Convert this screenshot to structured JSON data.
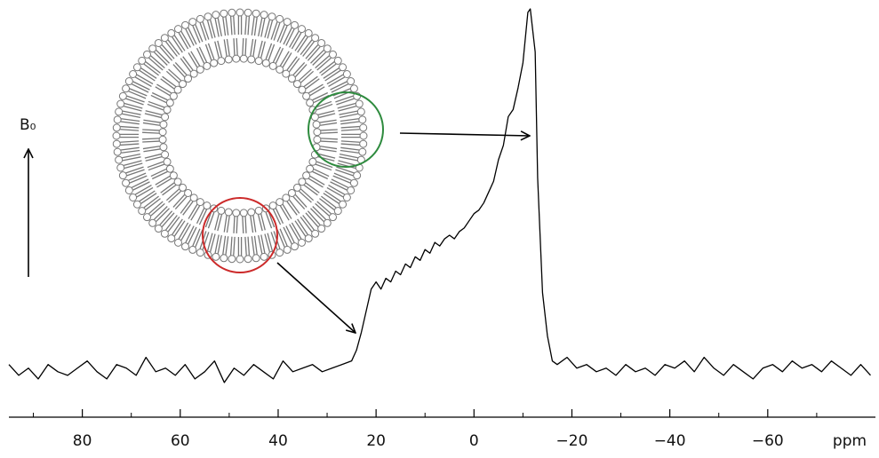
{
  "chart_data": {
    "type": "line",
    "annotation": "B₀",
    "x_label": "ppm",
    "reverse_x": true,
    "xlim": [
      95,
      -82
    ],
    "ylim": [
      -5,
      100
    ],
    "xticks": [
      80,
      60,
      40,
      20,
      0,
      {
        "value": -20,
        "label": "−20"
      },
      {
        "value": -40,
        "label": "−40"
      },
      {
        "value": -60,
        "label": "−60"
      }
    ],
    "minor_xticks": [
      90,
      70,
      50,
      30,
      10,
      -10,
      -30,
      -50,
      -70
    ],
    "x": [
      95,
      93,
      91,
      89,
      87,
      85,
      83,
      81,
      79,
      77,
      75,
      73,
      71,
      69,
      67,
      65,
      63,
      61,
      59,
      57,
      55,
      53,
      51,
      49,
      47,
      45,
      43,
      41,
      39,
      37,
      35,
      33,
      31,
      29,
      27,
      25,
      24,
      23,
      22,
      21,
      20,
      19,
      18,
      17,
      16,
      15,
      14,
      13,
      12,
      11,
      10,
      9,
      8,
      7,
      6,
      5,
      4,
      3,
      2,
      1,
      0,
      -1,
      -2,
      -3,
      -4,
      -5,
      -6,
      -7,
      -8,
      -9,
      -10,
      -11,
      -11.5,
      -12.5,
      -13,
      -14,
      -15,
      -16,
      -17,
      -19,
      -21,
      -23,
      -25,
      -27,
      -29,
      -31,
      -33,
      -35,
      -37,
      -39,
      -41,
      -43,
      -45,
      -47,
      -49,
      -51,
      -53,
      -55,
      -57,
      -59,
      -61,
      -63,
      -65,
      -67,
      -69,
      -71,
      -73,
      -75,
      -77,
      -79,
      -81
    ],
    "series": [
      {
        "color": "#000000",
        "values": [
          1,
          -2,
          0,
          -3,
          1,
          -1,
          -2,
          0,
          2,
          -1,
          -3,
          1,
          0,
          -2,
          3,
          -1,
          0,
          -2,
          1,
          -3,
          -1,
          2,
          -4,
          0,
          -2,
          1,
          -1,
          -3,
          2,
          -1,
          0,
          1,
          -1,
          0,
          1,
          2,
          5,
          10,
          16,
          22,
          24,
          22,
          25,
          24,
          27,
          26,
          29,
          28,
          31,
          30,
          33,
          32,
          35,
          34,
          36,
          37,
          36,
          38,
          39,
          41,
          43,
          44,
          46,
          49,
          52,
          58,
          62,
          70,
          72,
          78,
          85,
          99,
          100,
          88,
          53,
          21,
          9,
          2,
          1,
          3,
          0,
          1,
          -1,
          0,
          -2,
          1,
          -1,
          0,
          -2,
          1,
          0,
          2,
          -1,
          3,
          0,
          -2,
          1,
          -1,
          -3,
          0,
          1,
          -1,
          2,
          0,
          1,
          -1,
          2,
          0,
          -2,
          1,
          -2
        ]
      }
    ]
  }
}
